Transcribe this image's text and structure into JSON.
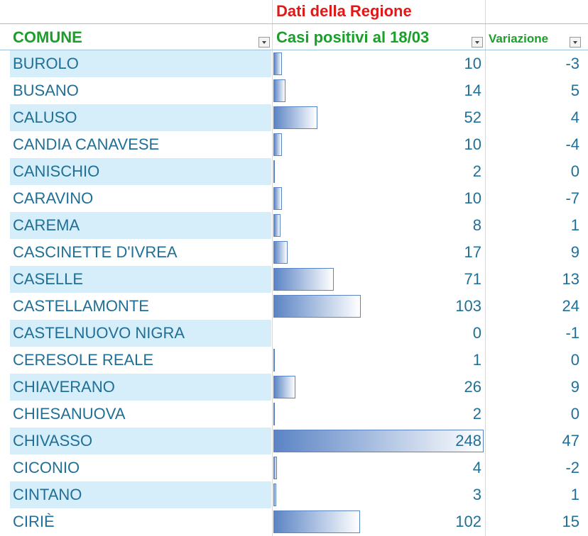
{
  "header": {
    "region": "Dati della Regione",
    "columns": [
      "COMUNE",
      "Casi positivi al 18/03",
      "Variazione"
    ]
  },
  "table": {
    "rows": [
      [
        "BUROLO",
        10,
        -3
      ],
      [
        "BUSANO",
        14,
        5
      ],
      [
        "CALUSO",
        52,
        4
      ],
      [
        "CANDIA CANAVESE",
        10,
        -4
      ],
      [
        "CANISCHIO",
        2,
        0
      ],
      [
        "CARAVINO",
        10,
        -7
      ],
      [
        "CAREMA",
        8,
        1
      ],
      [
        "CASCINETTE D'IVREA",
        17,
        9
      ],
      [
        "CASELLE",
        71,
        13
      ],
      [
        "CASTELLAMONTE",
        103,
        24
      ],
      [
        "CASTELNUOVO NIGRA",
        0,
        -1
      ],
      [
        "CERESOLE REALE",
        1,
        0
      ],
      [
        "CHIAVERANO",
        26,
        9
      ],
      [
        "CHIESANUOVA",
        2,
        0
      ],
      [
        "CHIVASSO",
        248,
        47
      ],
      [
        "CICONIO",
        4,
        -2
      ],
      [
        "CINTANO",
        3,
        1
      ],
      [
        "CIRIÈ",
        102,
        15
      ]
    ]
  }
}
